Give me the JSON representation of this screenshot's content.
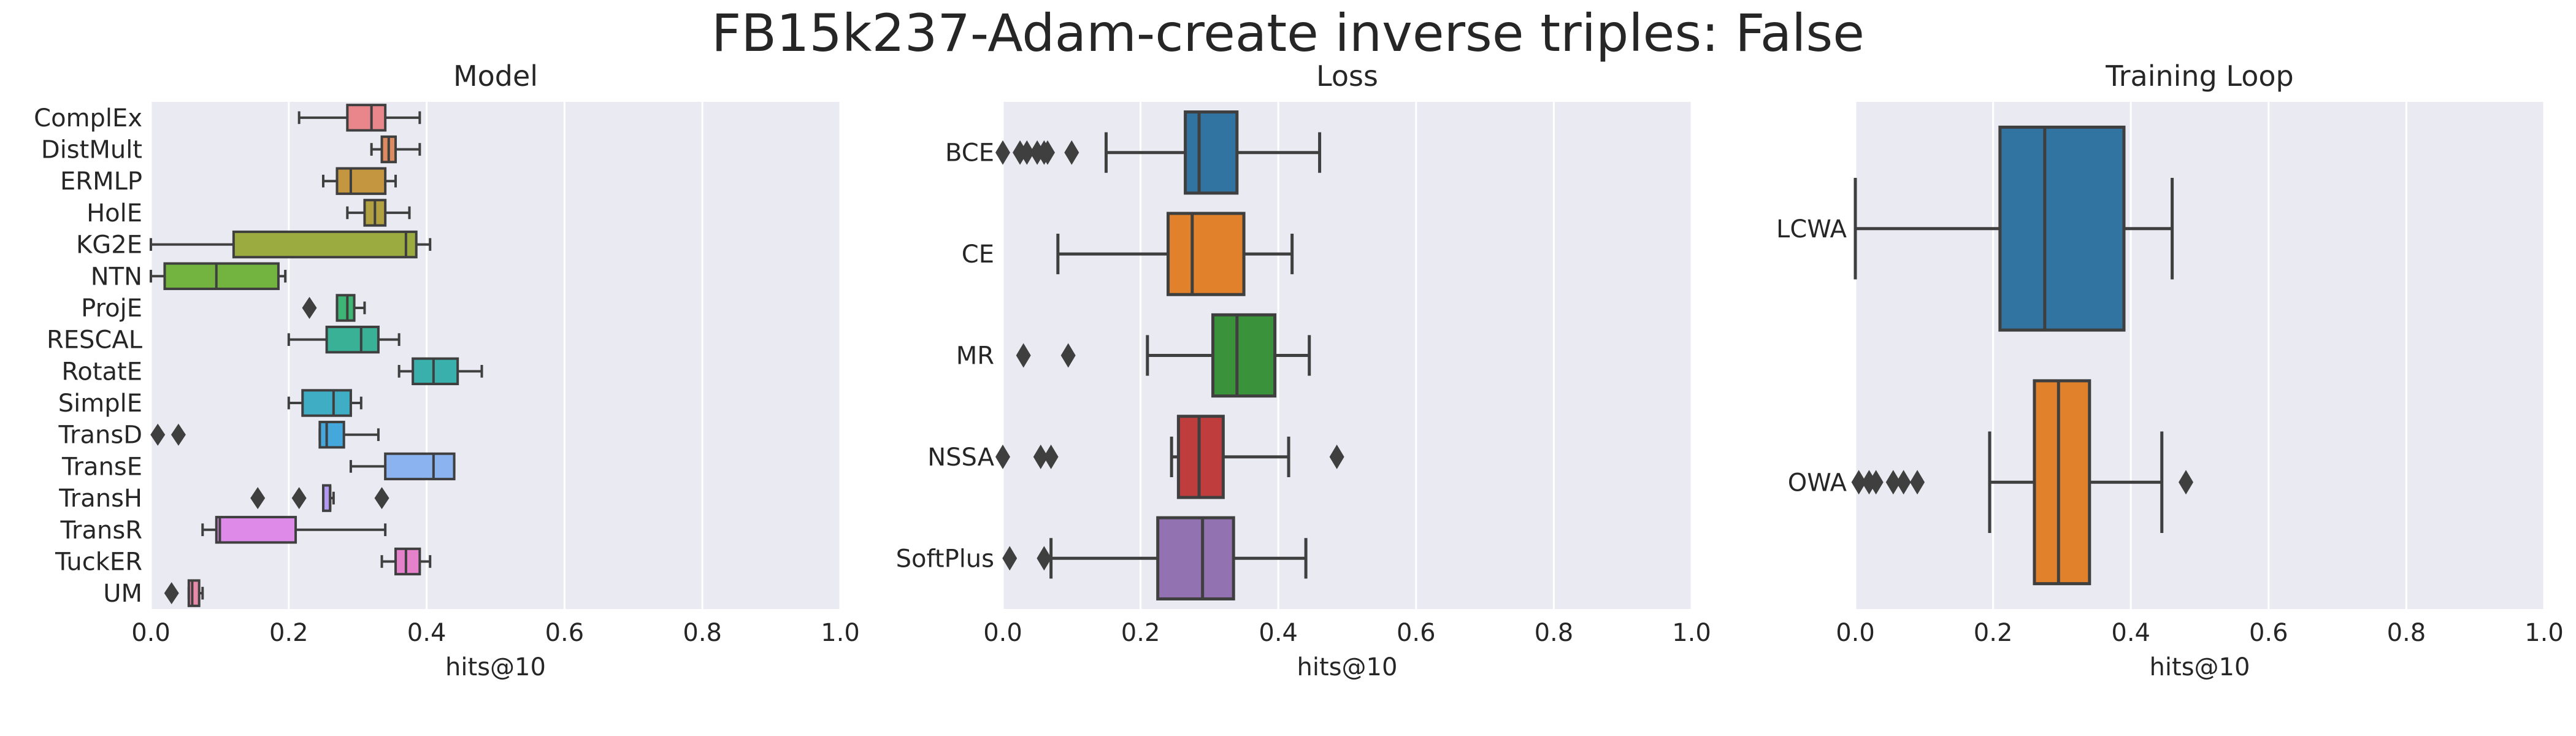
{
  "figure": {
    "title": "FB15k237-Adam-create inverse triples: False"
  },
  "chart_data": [
    {
      "type": "boxplot",
      "title": "Model",
      "orientation": "horizontal",
      "xlabel": "hits@10",
      "ylabel": "",
      "xlim": [
        0,
        1
      ],
      "xticks": [
        "0.0",
        "0.2",
        "0.4",
        "0.6",
        "0.8",
        "1.0"
      ],
      "grid": true,
      "categories": [
        "ComplEx",
        "DistMult",
        "ERMLP",
        "HolE",
        "KG2E",
        "NTN",
        "ProjE",
        "RESCAL",
        "RotatE",
        "SimplE",
        "TransD",
        "TransE",
        "TransH",
        "TransR",
        "TuckER",
        "UM"
      ],
      "colors": [
        "#e8868b",
        "#dc8a5f",
        "#c3963f",
        "#b2a140",
        "#9bab3f",
        "#72b43f",
        "#3db575",
        "#39b197",
        "#39b0ab",
        "#3fadc3",
        "#44a8dc",
        "#8ab3f0",
        "#b19af0",
        "#dd8ae8",
        "#e681cc",
        "#e88aaa"
      ],
      "series": [
        {
          "name": "ComplEx",
          "min": 0.215,
          "q1": 0.285,
          "median": 0.32,
          "q3": 0.34,
          "max": 0.39,
          "outliers": []
        },
        {
          "name": "DistMult",
          "min": 0.32,
          "q1": 0.335,
          "median": 0.345,
          "q3": 0.355,
          "max": 0.39,
          "outliers": []
        },
        {
          "name": "ERMLP",
          "min": 0.25,
          "q1": 0.27,
          "median": 0.29,
          "q3": 0.34,
          "max": 0.355,
          "outliers": []
        },
        {
          "name": "HolE",
          "min": 0.285,
          "q1": 0.31,
          "median": 0.325,
          "q3": 0.34,
          "max": 0.375,
          "outliers": []
        },
        {
          "name": "KG2E",
          "min": 0.0,
          "q1": 0.12,
          "median": 0.37,
          "q3": 0.385,
          "max": 0.405,
          "outliers": []
        },
        {
          "name": "NTN",
          "min": 0.0,
          "q1": 0.02,
          "median": 0.095,
          "q3": 0.185,
          "max": 0.195,
          "outliers": []
        },
        {
          "name": "ProjE",
          "min": 0.27,
          "q1": 0.27,
          "median": 0.285,
          "q3": 0.295,
          "max": 0.31,
          "outliers": [
            0.23
          ]
        },
        {
          "name": "RESCAL",
          "min": 0.2,
          "q1": 0.255,
          "median": 0.305,
          "q3": 0.33,
          "max": 0.36,
          "outliers": []
        },
        {
          "name": "RotatE",
          "min": 0.36,
          "q1": 0.38,
          "median": 0.41,
          "q3": 0.445,
          "max": 0.48,
          "outliers": []
        },
        {
          "name": "SimplE",
          "min": 0.2,
          "q1": 0.22,
          "median": 0.265,
          "q3": 0.29,
          "max": 0.305,
          "outliers": []
        },
        {
          "name": "TransD",
          "min": 0.245,
          "q1": 0.245,
          "median": 0.255,
          "q3": 0.28,
          "max": 0.33,
          "outliers": [
            0.01,
            0.04
          ]
        },
        {
          "name": "TransE",
          "min": 0.29,
          "q1": 0.34,
          "median": 0.41,
          "q3": 0.44,
          "max": 0.44,
          "outliers": []
        },
        {
          "name": "TransH",
          "min": 0.25,
          "q1": 0.25,
          "median": 0.26,
          "q3": 0.26,
          "max": 0.265,
          "outliers": [
            0.155,
            0.215,
            0.335
          ]
        },
        {
          "name": "TransR",
          "min": 0.075,
          "q1": 0.095,
          "median": 0.1,
          "q3": 0.21,
          "max": 0.34,
          "outliers": []
        },
        {
          "name": "TuckER",
          "min": 0.335,
          "q1": 0.355,
          "median": 0.37,
          "q3": 0.39,
          "max": 0.405,
          "outliers": []
        },
        {
          "name": "UM",
          "min": 0.055,
          "q1": 0.055,
          "median": 0.06,
          "q3": 0.07,
          "max": 0.075,
          "outliers": [
            0.03
          ]
        }
      ]
    },
    {
      "type": "boxplot",
      "title": "Loss",
      "orientation": "horizontal",
      "xlabel": "hits@10",
      "ylabel": "",
      "xlim": [
        0,
        1
      ],
      "xticks": [
        "0.0",
        "0.2",
        "0.4",
        "0.6",
        "0.8",
        "1.0"
      ],
      "grid": true,
      "categories": [
        "BCE",
        "CE",
        "MR",
        "NSSA",
        "SoftPlus"
      ],
      "colors": [
        "#3274a1",
        "#e1812c",
        "#3a923a",
        "#c03d3e",
        "#9372b2"
      ],
      "series": [
        {
          "name": "BCE",
          "min": 0.15,
          "q1": 0.265,
          "median": 0.285,
          "q3": 0.34,
          "max": 0.46,
          "outliers": [
            0.0,
            0.025,
            0.035,
            0.05,
            0.06,
            0.065,
            0.1
          ]
        },
        {
          "name": "CE",
          "min": 0.08,
          "q1": 0.24,
          "median": 0.275,
          "q3": 0.35,
          "max": 0.42,
          "outliers": []
        },
        {
          "name": "MR",
          "min": 0.21,
          "q1": 0.305,
          "median": 0.34,
          "q3": 0.395,
          "max": 0.445,
          "outliers": [
            0.03,
            0.095
          ]
        },
        {
          "name": "NSSA",
          "min": 0.245,
          "q1": 0.255,
          "median": 0.285,
          "q3": 0.32,
          "max": 0.415,
          "outliers": [
            0.0,
            0.055,
            0.07,
            0.485
          ]
        },
        {
          "name": "SoftPlus",
          "min": 0.07,
          "q1": 0.225,
          "median": 0.29,
          "q3": 0.335,
          "max": 0.44,
          "outliers": [
            0.01,
            0.06
          ]
        }
      ]
    },
    {
      "type": "boxplot",
      "title": "Training Loop",
      "orientation": "horizontal",
      "xlabel": "hits@10",
      "ylabel": "",
      "xlim": [
        0,
        1
      ],
      "xticks": [
        "0.0",
        "0.2",
        "0.4",
        "0.6",
        "0.8",
        "1.0"
      ],
      "grid": true,
      "categories": [
        "LCWA",
        "OWA"
      ],
      "colors": [
        "#3274a1",
        "#e1812c"
      ],
      "series": [
        {
          "name": "LCWA",
          "min": 0.0,
          "q1": 0.21,
          "median": 0.275,
          "q3": 0.39,
          "max": 0.46,
          "outliers": []
        },
        {
          "name": "OWA",
          "min": 0.195,
          "q1": 0.26,
          "median": 0.295,
          "q3": 0.34,
          "max": 0.445,
          "outliers": [
            0.005,
            0.02,
            0.03,
            0.055,
            0.07,
            0.09,
            0.48
          ]
        }
      ]
    }
  ]
}
